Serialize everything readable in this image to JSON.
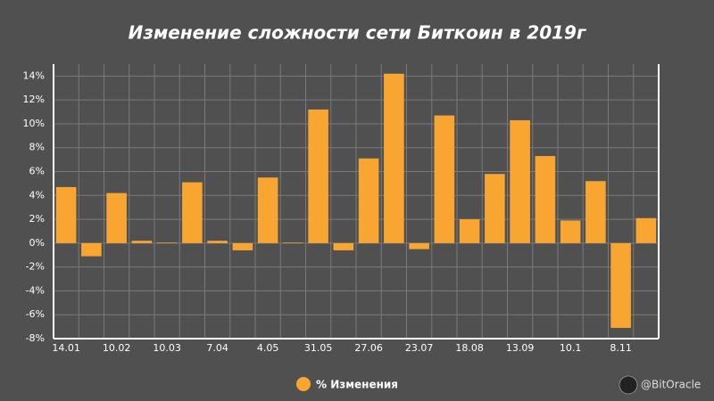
{
  "chart_data": {
    "type": "bar",
    "title": "Изменение сложности сети Биткоин в 2019г",
    "categories": [
      "14.01",
      null,
      "10.02",
      null,
      "10.03",
      null,
      "7.04",
      null,
      "4.05",
      null,
      "31.05",
      null,
      "27.06",
      null,
      "23.07",
      null,
      "18.08",
      null,
      "13.09",
      null,
      "10.1",
      null,
      "8.11",
      null
    ],
    "series": [
      {
        "name": "% Изменения",
        "color": "#f8a532",
        "values": [
          4.7,
          -1.1,
          4.2,
          0.2,
          0.05,
          5.1,
          0.2,
          -0.6,
          5.5,
          0.05,
          11.2,
          -0.6,
          7.1,
          14.2,
          -0.5,
          10.7,
          2.0,
          5.8,
          10.3,
          7.3,
          1.9,
          5.2,
          -7.1,
          2.1
        ]
      }
    ],
    "ylim": [
      -8,
      15
    ],
    "yticks": [
      {
        "value": -8,
        "label": "-8%"
      },
      {
        "value": -6,
        "label": "-6%"
      },
      {
        "value": -4,
        "label": "-4%"
      },
      {
        "value": -2,
        "label": "-2%"
      },
      {
        "value": 0,
        "label": "0%"
      },
      {
        "value": 2,
        "label": "2%"
      },
      {
        "value": 4,
        "label": "4%"
      },
      {
        "value": 6,
        "label": "6%"
      },
      {
        "value": 8,
        "label": "8%"
      },
      {
        "value": 10,
        "label": "10%"
      },
      {
        "value": 12,
        "label": "12%"
      },
      {
        "value": 14,
        "label": "14%"
      }
    ],
    "grid": true,
    "legend": "bottom",
    "watermark": "@BitOracle"
  }
}
